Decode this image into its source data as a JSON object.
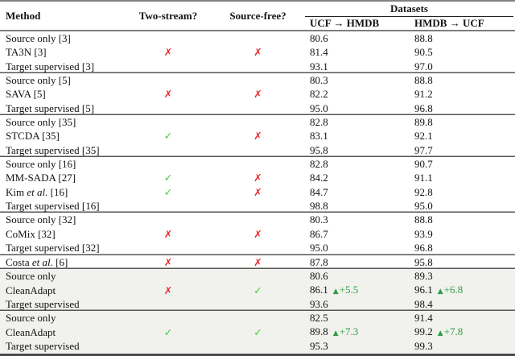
{
  "colors": {
    "check_green": "#33cf33",
    "cross_red": "#e82a2a",
    "gain_green": "#2e9e44",
    "shaded_row_bg": "#f1f1ee"
  },
  "table": {
    "title_header": {
      "method": "Method",
      "two_stream": "Two-stream?",
      "source_free": "Source-free?",
      "datasets": "Datasets",
      "dataset_cols": [
        "UCF → HMDB",
        "HMDB → UCF"
      ]
    },
    "marks": {
      "check": "✓",
      "cross": "✗"
    },
    "gain_icon": "▲",
    "groups": [
      {
        "shaded": false,
        "rows": [
          {
            "method": "Source only [3]",
            "ucf_hmdb": "80.6",
            "hmdb_ucf": "88.8"
          },
          {
            "method": "TA3N [3]",
            "two_stream": "cross",
            "source_free": "cross",
            "ucf_hmdb": "81.4",
            "hmdb_ucf": "90.5"
          },
          {
            "method": "Target supervised [3]",
            "ucf_hmdb": "93.1",
            "hmdb_ucf": "97.0"
          }
        ]
      },
      {
        "shaded": false,
        "rows": [
          {
            "method": "Source only [5]",
            "ucf_hmdb": "80.3",
            "hmdb_ucf": "88.8"
          },
          {
            "method": "SAVA [5]",
            "two_stream": "cross",
            "source_free": "cross",
            "ucf_hmdb": "82.2",
            "hmdb_ucf": "91.2"
          },
          {
            "method": "Target supervised [5]",
            "ucf_hmdb": "95.0",
            "hmdb_ucf": "96.8"
          }
        ]
      },
      {
        "shaded": false,
        "rows": [
          {
            "method": "Source only [35]",
            "ucf_hmdb": "82.8",
            "hmdb_ucf": "89.8"
          },
          {
            "method": "STCDA [35]",
            "two_stream": "check",
            "source_free": "cross",
            "ucf_hmdb": "83.1",
            "hmdb_ucf": "92.1"
          },
          {
            "method": "Target supervised [35]",
            "ucf_hmdb": "95.8",
            "hmdb_ucf": "97.7"
          }
        ]
      },
      {
        "shaded": false,
        "rows": [
          {
            "method": "Source only [16]",
            "ucf_hmdb": "82.8",
            "hmdb_ucf": "90.7"
          },
          {
            "method": "MM-SADA [27]",
            "two_stream": "check",
            "source_free": "cross",
            "ucf_hmdb": "84.2",
            "hmdb_ucf": "91.1"
          },
          {
            "method_pre": "Kim ",
            "method_etal": "et al.",
            "method_post": " [16]",
            "two_stream": "check",
            "source_free": "cross",
            "ucf_hmdb": "84.7",
            "hmdb_ucf": "92.8"
          },
          {
            "method": "Target supervised [16]",
            "ucf_hmdb": "98.8",
            "hmdb_ucf": "95.0"
          }
        ]
      },
      {
        "shaded": false,
        "rows": [
          {
            "method": "Source only [32]",
            "ucf_hmdb": "80.3",
            "hmdb_ucf": "88.8"
          },
          {
            "method": "CoMix [32]",
            "two_stream": "cross",
            "source_free": "cross",
            "ucf_hmdb": "86.7",
            "hmdb_ucf": "93.9"
          },
          {
            "method": "Target supervised [32]",
            "ucf_hmdb": "95.0",
            "hmdb_ucf": "96.8"
          }
        ]
      },
      {
        "shaded": false,
        "rows": [
          {
            "method_pre": "Costa ",
            "method_etal": "et al.",
            "method_post": " [6]",
            "two_stream": "cross",
            "source_free": "cross",
            "ucf_hmdb": "87.8",
            "hmdb_ucf": "95.8"
          }
        ]
      },
      {
        "shaded": true,
        "rows": [
          {
            "method": "Source only",
            "ucf_hmdb": "80.6",
            "hmdb_ucf": "89.3"
          },
          {
            "method": "CleanAdapt",
            "two_stream": "cross",
            "source_free": "check",
            "ucf_hmdb": "86.1",
            "ucf_gain": "+5.5",
            "hmdb_ucf": "96.1",
            "hmdb_gain": "+6.8"
          },
          {
            "method": "Target supervised",
            "ucf_hmdb": "93.6",
            "hmdb_ucf": "98.4"
          }
        ]
      },
      {
        "shaded": true,
        "rows": [
          {
            "method": "Source only",
            "ucf_hmdb": "82.5",
            "hmdb_ucf": "91.4"
          },
          {
            "method": "CleanAdapt",
            "two_stream": "check",
            "source_free": "check",
            "ucf_hmdb": "89.8",
            "ucf_gain": "+7.3",
            "hmdb_ucf": "99.2",
            "hmdb_gain": "+7.8"
          },
          {
            "method": "Target supervised",
            "ucf_hmdb": "95.3",
            "hmdb_ucf": "99.3"
          }
        ]
      }
    ]
  }
}
